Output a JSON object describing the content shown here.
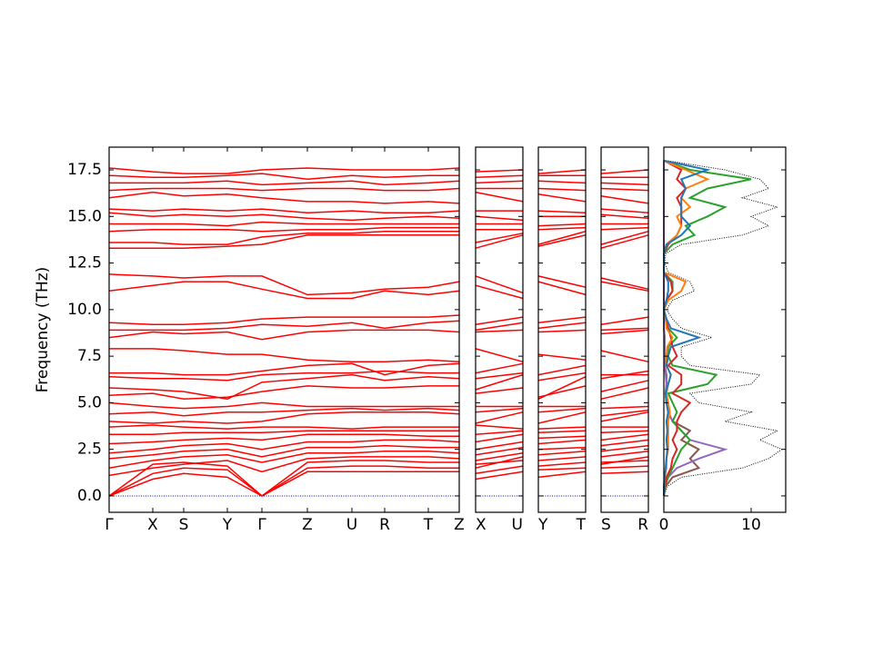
{
  "chart_data": [
    {
      "type": "band",
      "ylabel": "Frequency (THz)",
      "ylim": [
        -0.88,
        18.72
      ],
      "yticks": [
        {
          "value": 0,
          "label": "0.0"
        },
        2.5,
        {
          "value": 5,
          "label": "5.0"
        },
        7.5,
        {
          "value": 10,
          "label": "10.0"
        },
        12.5,
        {
          "value": 15,
          "label": "15.0"
        },
        17.5
      ],
      "xlim": [
        0,
        385
      ],
      "xticks": [
        {
          "value": 0,
          "label": "Γ"
        },
        {
          "value": 48,
          "label": "X"
        },
        {
          "value": 82,
          "label": "S"
        },
        {
          "value": 130,
          "label": "Y"
        },
        {
          "value": 168,
          "label": "Γ"
        },
        {
          "value": 218,
          "label": "Z"
        },
        {
          "value": 267,
          "label": "U"
        },
        {
          "value": 303,
          "label": "R"
        },
        {
          "value": 351,
          "label": "T"
        },
        {
          "value": 385,
          "label": "Z"
        }
      ],
      "color": "#ff0000",
      "zero_line_color": "#0000cc",
      "bands": [
        [
          0,
          0.9,
          1.2,
          1.0,
          0,
          1.3,
          1.3,
          1.3,
          1.3,
          1.3
        ],
        [
          0,
          1.2,
          1.5,
          1.4,
          0,
          1.5,
          1.6,
          1.6,
          1.5,
          1.5
        ],
        [
          0,
          1.7,
          1.8,
          1.6,
          0,
          1.8,
          1.9,
          1.9,
          1.8,
          1.8
        ],
        [
          1.1,
          1.5,
          1.7,
          1.9,
          1.3,
          2.0,
          2.1,
          2.1,
          2.1,
          2.0
        ],
        [
          1.5,
          1.9,
          2.1,
          2.2,
          1.8,
          2.3,
          2.3,
          2.4,
          2.4,
          2.3
        ],
        [
          2.0,
          2.2,
          2.4,
          2.5,
          2.1,
          2.6,
          2.6,
          2.7,
          2.6,
          2.6
        ],
        [
          2.3,
          2.5,
          2.7,
          2.8,
          2.5,
          2.9,
          2.9,
          3.0,
          3.0,
          2.9
        ],
        [
          2.8,
          2.9,
          3.0,
          3.1,
          3.0,
          3.3,
          3.3,
          3.3,
          3.2,
          3.2
        ],
        [
          3.3,
          3.3,
          3.4,
          3.4,
          3.4,
          3.5,
          3.5,
          3.5,
          3.5,
          3.5
        ],
        [
          3.7,
          3.8,
          3.7,
          3.6,
          3.7,
          3.7,
          3.6,
          3.7,
          3.7,
          3.7
        ],
        [
          4.0,
          3.9,
          4.0,
          3.9,
          4.0,
          4.4,
          4.5,
          4.5,
          4.5,
          4.4
        ],
        [
          4.4,
          4.5,
          4.3,
          4.5,
          4.5,
          4.6,
          4.7,
          4.6,
          4.7,
          4.6
        ],
        [
          5.0,
          4.8,
          4.7,
          4.8,
          5.0,
          4.8,
          4.8,
          4.8,
          4.8,
          4.8
        ],
        [
          5.4,
          5.5,
          5.2,
          5.3,
          5.6,
          5.9,
          5.8,
          5.8,
          5.9,
          5.9
        ],
        [
          5.8,
          5.7,
          5.6,
          5.2,
          6.1,
          6.3,
          6.5,
          6.2,
          6.4,
          6.3
        ],
        [
          6.4,
          6.3,
          6.3,
          6.2,
          6.5,
          6.6,
          6.6,
          6.7,
          6.6,
          6.6
        ],
        [
          6.6,
          6.6,
          6.5,
          6.5,
          6.7,
          7.0,
          7.1,
          6.5,
          7.0,
          7.1
        ],
        [
          7.9,
          7.9,
          7.8,
          7.6,
          7.6,
          7.3,
          7.2,
          7.2,
          7.3,
          7.2
        ],
        [
          8.5,
          8.8,
          8.7,
          8.8,
          8.4,
          8.8,
          8.9,
          8.9,
          8.9,
          8.8
        ],
        [
          8.9,
          8.9,
          8.9,
          9.0,
          9.2,
          9.1,
          9.3,
          9.0,
          9.3,
          9.4
        ],
        [
          9.3,
          9.2,
          9.2,
          9.3,
          9.5,
          9.6,
          9.6,
          9.6,
          9.6,
          9.7
        ],
        [
          11.0,
          11.3,
          11.5,
          11.5,
          11.1,
          10.6,
          10.6,
          11.0,
          10.8,
          11.0
        ],
        [
          11.9,
          11.8,
          11.7,
          11.8,
          11.8,
          10.8,
          10.9,
          11.1,
          11.2,
          11.5
        ],
        [
          13.3,
          13.3,
          13.3,
          13.4,
          13.5,
          14.0,
          14.0,
          14.0,
          14.0,
          14.0
        ],
        [
          13.6,
          13.6,
          13.5,
          13.5,
          13.9,
          14.1,
          14.1,
          14.2,
          14.2,
          14.2
        ],
        [
          14.2,
          14.3,
          14.3,
          14.3,
          14.2,
          14.3,
          14.3,
          14.4,
          14.4,
          14.4
        ],
        [
          14.6,
          14.6,
          14.6,
          14.5,
          14.7,
          14.6,
          14.6,
          14.6,
          14.6,
          14.6
        ],
        [
          15.2,
          15.0,
          15.1,
          15.0,
          15.1,
          14.9,
          14.8,
          14.9,
          15.0,
          14.9
        ],
        [
          15.4,
          15.3,
          15.4,
          15.3,
          15.4,
          15.2,
          15.3,
          15.2,
          15.2,
          15.3
        ],
        [
          16.0,
          16.3,
          16.1,
          16.2,
          16.0,
          15.8,
          15.8,
          15.7,
          15.8,
          15.7
        ],
        [
          16.4,
          16.5,
          16.5,
          16.5,
          16.4,
          16.5,
          16.5,
          16.4,
          16.4,
          16.5
        ],
        [
          16.8,
          16.8,
          16.8,
          16.9,
          16.7,
          16.8,
          16.9,
          16.7,
          16.8,
          16.9
        ],
        [
          17.2,
          17.1,
          17.1,
          17.2,
          17.3,
          17.0,
          17.2,
          17.1,
          17.2,
          17.2
        ],
        [
          17.6,
          17.4,
          17.3,
          17.3,
          17.5,
          17.6,
          17.5,
          17.5,
          17.5,
          17.6
        ]
      ]
    },
    {
      "type": "band",
      "xlim": [
        0,
        1
      ],
      "xticks": [
        {
          "value": 0,
          "label": "X"
        },
        {
          "value": 1,
          "label": "U"
        }
      ],
      "color": "#ff0000",
      "zero_line_color": "#0000cc",
      "columns": [
        [
          0.9,
          1.2,
          1.7,
          1.5,
          1.9,
          2.2,
          2.5,
          2.9,
          3.3,
          3.8,
          3.9,
          4.5,
          4.8,
          5.5,
          5.7,
          6.3,
          6.6,
          7.9,
          8.8,
          8.9,
          9.2,
          11.3,
          11.8,
          13.3,
          13.6,
          14.3,
          14.6,
          15.0,
          15.3,
          16.3,
          16.5,
          16.8,
          17.1,
          17.4
        ],
        [
          1.3,
          1.6,
          1.9,
          2.1,
          2.3,
          2.6,
          2.9,
          3.3,
          3.5,
          3.6,
          4.5,
          4.7,
          4.8,
          5.8,
          6.5,
          6.6,
          7.1,
          7.2,
          8.9,
          9.3,
          9.6,
          10.6,
          10.9,
          14.0,
          14.1,
          14.3,
          14.6,
          14.8,
          15.3,
          15.8,
          16.5,
          16.9,
          17.2,
          17.5
        ]
      ]
    },
    {
      "type": "band",
      "xlim": [
        0,
        1
      ],
      "xticks": [
        {
          "value": 0,
          "label": "Y"
        },
        {
          "value": 1,
          "label": "T"
        }
      ],
      "color": "#ff0000",
      "zero_line_color": "#0000cc",
      "columns": [
        [
          1.0,
          1.4,
          1.6,
          1.9,
          2.2,
          2.5,
          2.8,
          3.1,
          3.4,
          3.6,
          3.9,
          4.5,
          4.8,
          5.3,
          5.2,
          6.2,
          6.5,
          7.6,
          8.8,
          9.0,
          9.3,
          11.5,
          11.8,
          13.4,
          13.5,
          14.3,
          14.5,
          15.0,
          15.3,
          16.2,
          16.5,
          16.9,
          17.2,
          17.3
        ],
        [
          1.3,
          1.5,
          1.8,
          2.1,
          2.4,
          2.6,
          3.0,
          3.2,
          3.5,
          3.7,
          4.5,
          4.7,
          4.8,
          5.9,
          6.4,
          6.6,
          7.0,
          7.3,
          8.9,
          9.3,
          9.6,
          10.8,
          11.2,
          14.0,
          14.2,
          14.4,
          14.6,
          15.0,
          15.2,
          15.8,
          16.4,
          16.8,
          17.2,
          17.5
        ]
      ]
    },
    {
      "type": "band",
      "xlim": [
        0,
        1
      ],
      "xticks": [
        {
          "value": 0,
          "label": "S"
        },
        {
          "value": 1,
          "label": "R"
        }
      ],
      "color": "#ff0000",
      "zero_line_color": "#0000cc",
      "columns": [
        [
          1.2,
          1.5,
          1.8,
          1.7,
          2.1,
          2.4,
          2.7,
          3.0,
          3.4,
          3.7,
          4.0,
          4.3,
          4.7,
          5.2,
          5.6,
          6.3,
          6.5,
          7.8,
          8.7,
          8.9,
          9.2,
          11.5,
          11.7,
          13.3,
          13.5,
          14.3,
          14.6,
          15.1,
          15.4,
          16.1,
          16.5,
          16.8,
          17.1,
          17.3
        ],
        [
          1.3,
          1.6,
          1.9,
          2.1,
          2.4,
          2.7,
          3.0,
          3.3,
          3.5,
          3.7,
          4.5,
          4.6,
          4.8,
          5.8,
          6.2,
          6.7,
          6.5,
          7.2,
          8.9,
          9.0,
          9.6,
          11.0,
          11.1,
          14.0,
          14.2,
          14.4,
          14.6,
          14.9,
          15.2,
          15.7,
          16.4,
          16.7,
          17.1,
          17.5
        ]
      ]
    },
    {
      "type": "dos",
      "xlim": [
        0,
        13.96
      ],
      "xticks": [
        0,
        10
      ],
      "frequencies": [
        0,
        0.5,
        1,
        1.5,
        2,
        2.5,
        3,
        3.5,
        4,
        4.5,
        5,
        5.5,
        6,
        6.5,
        7,
        7.5,
        8,
        8.5,
        9,
        9.5,
        10,
        10.5,
        11,
        11.5,
        12,
        12.5,
        13,
        13.5,
        14,
        14.5,
        15,
        15.5,
        16,
        16.5,
        17,
        17.5,
        18
      ],
      "series": [
        {
          "color": "#000000",
          "dash": "dotted",
          "values": [
            0,
            0.4,
            2,
            9,
            12,
            13.5,
            11,
            13,
            7,
            10,
            4,
            3,
            10,
            11,
            3,
            2,
            2,
            5.5,
            2,
            1,
            0.3,
            1,
            3.5,
            3,
            0.5,
            0.1,
            0.2,
            2,
            9,
            12,
            10,
            13,
            9,
            12,
            11,
            7,
            0.3
          ]
        },
        {
          "color": "#8c564b",
          "values": [
            0,
            0.2,
            1,
            4,
            3,
            4,
            2,
            3,
            1,
            0.5,
            0.3,
            0.2,
            0.3,
            0.3,
            0.1,
            0.1,
            0.1,
            0.1,
            0,
            0,
            0,
            0,
            0,
            0,
            0,
            0,
            0,
            0,
            0,
            0,
            0,
            0,
            0,
            0,
            0,
            0,
            0
          ]
        },
        {
          "color": "#9467bd",
          "values": [
            0,
            0.1,
            0.5,
            1.5,
            4,
            7,
            3,
            2,
            1,
            0.5,
            0.3,
            0.2,
            0.3,
            0.2,
            0.1,
            0.1,
            0.1,
            0.1,
            0,
            0,
            0,
            0,
            0,
            0,
            0,
            0,
            0,
            0,
            0,
            0,
            0,
            0,
            0,
            0,
            0,
            0,
            0
          ]
        },
        {
          "color": "#2ca02c",
          "values": [
            0,
            0.1,
            0.5,
            1,
            1.5,
            2,
            3,
            2,
            1,
            1.5,
            1,
            0.5,
            5,
            6,
            1,
            0.5,
            0.5,
            1.5,
            0.5,
            0.2,
            0,
            0.3,
            1,
            1,
            0,
            0,
            0,
            1,
            3.5,
            2.5,
            5,
            7,
            3,
            5,
            10,
            3,
            0
          ]
        },
        {
          "color": "#d62728",
          "values": [
            0,
            0.1,
            0.3,
            0.8,
            1,
            1.5,
            1,
            1.5,
            1.5,
            2,
            3,
            1,
            2,
            2,
            0.5,
            1.5,
            1,
            0.8,
            0.5,
            0.2,
            0,
            0.3,
            1,
            0.8,
            0,
            0,
            0,
            0.5,
            1.5,
            2,
            2,
            2,
            1.5,
            2.5,
            1.5,
            2,
            0
          ]
        },
        {
          "color": "#ff7f0e",
          "values": [
            0,
            0,
            0.1,
            0.3,
            0.3,
            0.5,
            0.5,
            0.5,
            0.5,
            0.7,
            0.5,
            0.3,
            0.5,
            0.8,
            0.3,
            0.3,
            0.4,
            1,
            0.3,
            0.2,
            0,
            0.5,
            2,
            2.5,
            0,
            0,
            0,
            0.3,
            1.5,
            2,
            1.5,
            3,
            2,
            2.5,
            5,
            2.5,
            0
          ]
        },
        {
          "color": "#1f77b4",
          "values": [
            0,
            0,
            0.1,
            0.2,
            0.3,
            0.4,
            0.3,
            0.4,
            0.3,
            0.5,
            0.3,
            0.2,
            0.5,
            0.8,
            0.3,
            0.5,
            0.8,
            4,
            0.8,
            0.3,
            0,
            0.3,
            0.5,
            0.5,
            0,
            0,
            0,
            0.3,
            2,
            3,
            2,
            2,
            2,
            2.5,
            2,
            5,
            0
          ]
        }
      ]
    }
  ]
}
